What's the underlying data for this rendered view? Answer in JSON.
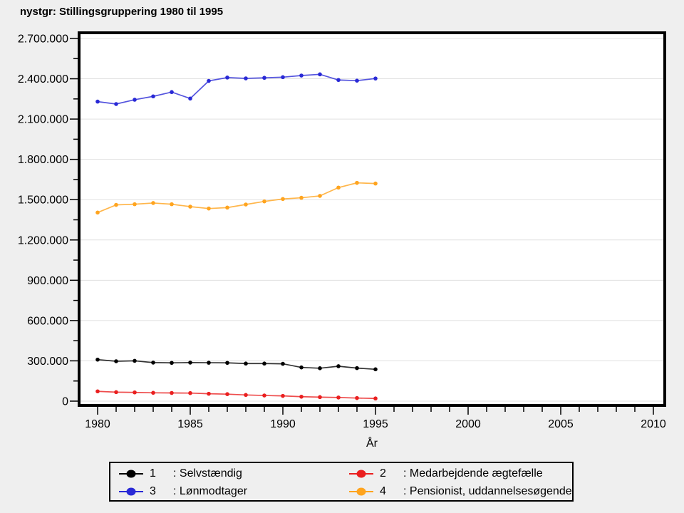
{
  "title": "nystgr: Stillingsgruppering 1980 til 1995",
  "chart_data": {
    "type": "line",
    "title": "nystgr: Stillingsgruppering 1980 til 1995",
    "xlabel": "År",
    "ylabel": "",
    "x": [
      1980,
      1981,
      1982,
      1983,
      1984,
      1985,
      1986,
      1987,
      1988,
      1989,
      1990,
      1991,
      1992,
      1993,
      1994,
      1995
    ],
    "series": [
      {
        "name": "1",
        "label": "Selvstændig",
        "color": "#000000",
        "values": [
          309000,
          297000,
          300000,
          287000,
          285000,
          287000,
          286000,
          285000,
          280000,
          280000,
          278000,
          251000,
          245000,
          260000,
          246000,
          237000
        ]
      },
      {
        "name": "2",
        "label": "Medarbejdende ægtefælle",
        "color": "#ea1f1f",
        "values": [
          73000,
          67000,
          65000,
          62000,
          61000,
          60000,
          55000,
          52000,
          46000,
          42000,
          39000,
          33000,
          30000,
          27000,
          23000,
          20000
        ]
      },
      {
        "name": "3",
        "label": "Lønmodtager",
        "color": "#2929d6",
        "values": [
          2230000,
          2212000,
          2244000,
          2269000,
          2301000,
          2253000,
          2384000,
          2409000,
          2403000,
          2407000,
          2412000,
          2424000,
          2433000,
          2391000,
          2386000,
          2402000
        ]
      },
      {
        "name": "4",
        "label": "Pensionist, uddannelsesøgende",
        "color": "#ffa41e",
        "values": [
          1404000,
          1461000,
          1466000,
          1475000,
          1466000,
          1448000,
          1434000,
          1441000,
          1464000,
          1487000,
          1505000,
          1514000,
          1528000,
          1590000,
          1625000,
          1620000
        ]
      }
    ],
    "xticks": [
      1980,
      1985,
      1990,
      1995,
      2000,
      2005,
      2010
    ],
    "x_minor_step": 1,
    "yticks": [
      0,
      300000,
      600000,
      900000,
      1200000,
      1500000,
      1800000,
      2100000,
      2400000,
      2700000
    ],
    "y_minor_step": 150000,
    "ylim": [
      0,
      2700000
    ],
    "xlim": [
      1979,
      2010.6
    ],
    "grid": "horizontal-major",
    "legend_position": "bottom"
  },
  "legend": {
    "entries": [
      {
        "num": "1",
        "label": ": Selvstændig",
        "color": "#000000"
      },
      {
        "num": "2",
        "label": ": Medarbejdende ægtefælle",
        "color": "#ea1f1f"
      },
      {
        "num": "3",
        "label": ": Lønmodtager",
        "color": "#2929d6"
      },
      {
        "num": "4",
        "label": ": Pensionist, uddannelsesøgende",
        "color": "#ffa41e"
      }
    ]
  },
  "colors": {
    "background": "#efefef",
    "plot_background": "#ffffff",
    "frame": "#000000",
    "gridline": "#e0e0e0"
  }
}
